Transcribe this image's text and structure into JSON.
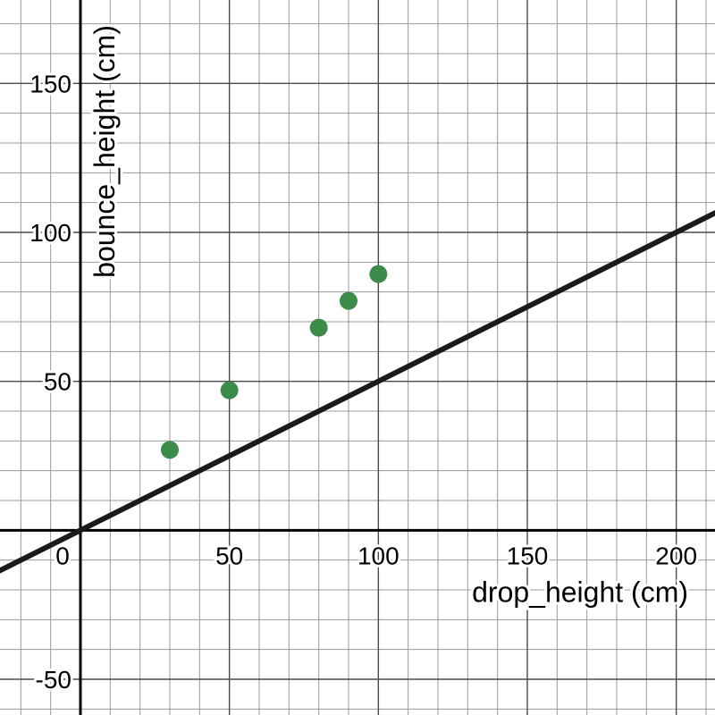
{
  "chart_data": {
    "type": "scatter",
    "title": "",
    "xlabel": "drop_height (cm)",
    "ylabel": "bounce_height (cm)",
    "xlim": [
      -27,
      213
    ],
    "ylim": [
      -62,
      178
    ],
    "grid": true,
    "x_ticks": [
      {
        "value": 0,
        "label": "0"
      },
      {
        "value": 50,
        "label": "50"
      },
      {
        "value": 100,
        "label": "100"
      },
      {
        "value": 150,
        "label": "150"
      },
      {
        "value": 200,
        "label": "200"
      }
    ],
    "y_ticks": [
      {
        "value": -50,
        "label": "-50"
      },
      {
        "value": 50,
        "label": "50"
      },
      {
        "value": 100,
        "label": "100"
      },
      {
        "value": 150,
        "label": "150"
      }
    ],
    "series": [
      {
        "type": "scatter",
        "color": "#3d8b4a",
        "points": [
          {
            "x": 30,
            "y": 27
          },
          {
            "x": 50,
            "y": 47
          },
          {
            "x": 80,
            "y": 68
          },
          {
            "x": 90,
            "y": 77
          },
          {
            "x": 100,
            "y": 86
          }
        ]
      },
      {
        "type": "line",
        "color": "#1a1a1a",
        "equation": "y = 0.5x",
        "slope": 0.5,
        "intercept": 0
      }
    ]
  }
}
